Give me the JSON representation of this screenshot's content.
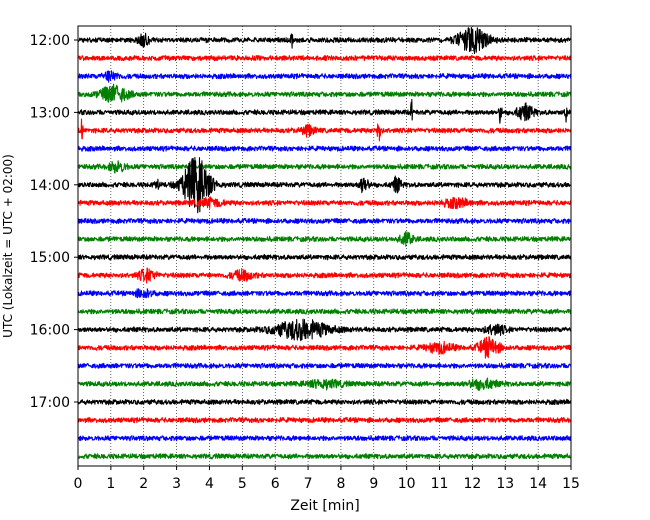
{
  "chart_data": {
    "type": "line",
    "title": "",
    "xlabel": "Zeit  [min]",
    "ylabel": "UTC (Lokalzeit = UTC + 02:00)",
    "xlim": [
      0,
      15
    ],
    "x_ticks": [
      "0",
      "1",
      "2",
      "3",
      "4",
      "5",
      "6",
      "7",
      "8",
      "9",
      "10",
      "11",
      "12",
      "13",
      "14",
      "15"
    ],
    "y_tick_labels": [
      "12:00",
      "13:00",
      "14:00",
      "15:00",
      "16:00",
      "17:00"
    ],
    "trace_interval_min": 15,
    "trace_start": "12:00",
    "trace_end": "17:45",
    "grid": "vertical dotted",
    "color_cycle": [
      "#000000",
      "#ff0000",
      "#0000ff",
      "#008000"
    ],
    "base_amplitude": 0.25,
    "events": [
      {
        "trace": "12:00",
        "t": 2.0,
        "amp": 0.7,
        "dur": 0.3
      },
      {
        "trace": "12:00",
        "t": 6.5,
        "amp": 1.2,
        "dur": 0.05
      },
      {
        "trace": "12:00",
        "t": 12.0,
        "amp": 1.3,
        "dur": 0.9
      },
      {
        "trace": "12:30",
        "t": 1.0,
        "amp": 0.5,
        "dur": 0.4
      },
      {
        "trace": "12:45",
        "t": 1.1,
        "amp": 0.9,
        "dur": 0.8
      },
      {
        "trace": "13:00",
        "t": 10.15,
        "amp": 1.4,
        "dur": 0.05
      },
      {
        "trace": "13:00",
        "t": 12.85,
        "amp": 1.2,
        "dur": 0.08
      },
      {
        "trace": "13:00",
        "t": 13.6,
        "amp": 0.8,
        "dur": 0.5
      },
      {
        "trace": "13:00",
        "t": 14.85,
        "amp": 1.1,
        "dur": 0.06
      },
      {
        "trace": "13:15",
        "t": 0.12,
        "amp": 2.0,
        "dur": 0.05
      },
      {
        "trace": "13:15",
        "t": 7.0,
        "amp": 0.5,
        "dur": 0.4
      },
      {
        "trace": "13:15",
        "t": 9.15,
        "amp": 1.5,
        "dur": 0.1
      },
      {
        "trace": "13:45",
        "t": 1.2,
        "amp": 0.5,
        "dur": 0.5
      },
      {
        "trace": "14:00",
        "t": 3.6,
        "amp": 3.0,
        "dur": 0.8
      },
      {
        "trace": "14:00",
        "t": 2.4,
        "amp": 0.7,
        "dur": 0.1
      },
      {
        "trace": "14:00",
        "t": 8.7,
        "amp": 0.9,
        "dur": 0.25
      },
      {
        "trace": "14:00",
        "t": 9.7,
        "amp": 0.8,
        "dur": 0.25
      },
      {
        "trace": "14:15",
        "t": 4.0,
        "amp": 0.4,
        "dur": 0.8
      },
      {
        "trace": "14:15",
        "t": 11.5,
        "amp": 0.4,
        "dur": 0.8
      },
      {
        "trace": "14:45",
        "t": 10.0,
        "amp": 0.6,
        "dur": 0.4
      },
      {
        "trace": "15:15",
        "t": 2.1,
        "amp": 0.6,
        "dur": 0.5
      },
      {
        "trace": "15:15",
        "t": 5.0,
        "amp": 0.5,
        "dur": 0.6
      },
      {
        "trace": "15:30",
        "t": 2.0,
        "amp": 0.4,
        "dur": 0.5
      },
      {
        "trace": "16:00",
        "t": 6.8,
        "amp": 1.0,
        "dur": 1.6
      },
      {
        "trace": "16:00",
        "t": 12.7,
        "amp": 0.5,
        "dur": 0.6
      },
      {
        "trace": "16:15",
        "t": 12.5,
        "amp": 1.0,
        "dur": 0.6
      },
      {
        "trace": "16:15",
        "t": 11.0,
        "amp": 0.5,
        "dur": 0.8
      },
      {
        "trace": "16:45",
        "t": 12.3,
        "amp": 0.5,
        "dur": 0.8
      },
      {
        "trace": "16:45",
        "t": 7.5,
        "amp": 0.4,
        "dur": 1.0
      }
    ]
  }
}
